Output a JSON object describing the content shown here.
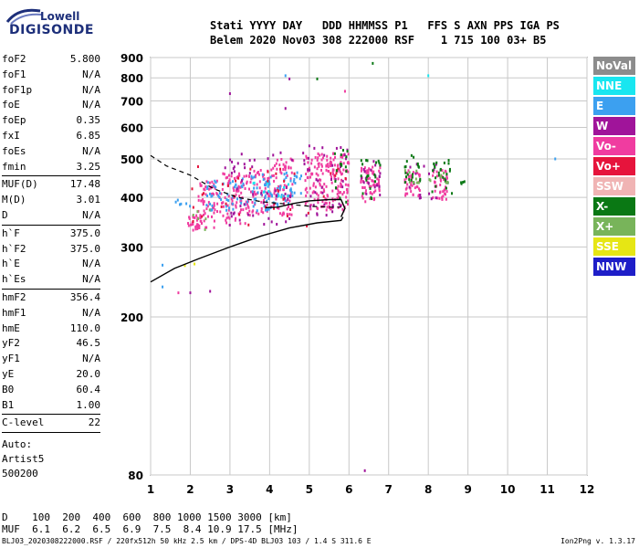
{
  "logo": {
    "line1": "Lowell",
    "line2": "DIGISONDE"
  },
  "header": {
    "labels": "Stati YYYY DAY   DDD HHMMSS P1   FFS S AXN PPS IGA PS",
    "values": "Belem 2020 Nov03 308 222000 RSF    1 715 100 03+ B5"
  },
  "params": [
    {
      "label": "foF2",
      "value": "5.800"
    },
    {
      "label": "foF1",
      "value": "N/A"
    },
    {
      "label": "foF1p",
      "value": "N/A"
    },
    {
      "label": "foE",
      "value": "N/A"
    },
    {
      "label": "foEp",
      "value": "0.35"
    },
    {
      "label": "fxI",
      "value": "6.85"
    },
    {
      "label": "foEs",
      "value": "N/A"
    },
    {
      "label": "fmin",
      "value": "3.25"
    },
    {
      "sep": true
    },
    {
      "label": "MUF(D)",
      "value": "17.48"
    },
    {
      "label": "M(D)",
      "value": "3.01"
    },
    {
      "label": "D",
      "value": "N/A"
    },
    {
      "sep": true
    },
    {
      "label": "h`F",
      "value": "375.0"
    },
    {
      "label": "h`F2",
      "value": "375.0"
    },
    {
      "label": "h`E",
      "value": "N/A"
    },
    {
      "label": "h`Es",
      "value": "N/A"
    },
    {
      "sep": true
    },
    {
      "label": "hmF2",
      "value": "356.4"
    },
    {
      "label": "hmF1",
      "value": "N/A"
    },
    {
      "label": "hmE",
      "value": "110.0"
    },
    {
      "label": "yF2",
      "value": "46.5"
    },
    {
      "label": "yF1",
      "value": "N/A"
    },
    {
      "label": "yE",
      "value": "20.0"
    },
    {
      "label": "B0",
      "value": "60.4"
    },
    {
      "label": "B1",
      "value": "1.00"
    },
    {
      "sep": true
    },
    {
      "label": "C-level",
      "value": "22"
    },
    {
      "sep": true
    }
  ],
  "auto": {
    "line1": "Auto:",
    "line2": "Artist5",
    "line3": "500200"
  },
  "legend": [
    {
      "label": "NoVal",
      "color": "#8c8c8c"
    },
    {
      "label": "NNE",
      "color": "#19e6f0"
    },
    {
      "label": "E",
      "color": "#3ca0f0"
    },
    {
      "label": "W",
      "color": "#a0149a"
    },
    {
      "label": "Vo-",
      "color": "#f03ca0"
    },
    {
      "label": "Vo+",
      "color": "#e6143c"
    },
    {
      "label": "SSW",
      "color": "#f0b4b4"
    },
    {
      "label": "X-",
      "color": "#0a7814"
    },
    {
      "label": "X+",
      "color": "#78b45a"
    },
    {
      "label": "SSE",
      "color": "#e6e614"
    },
    {
      "label": "NNW",
      "color": "#1e1ec8"
    }
  ],
  "muf_table": {
    "d_row": "D    100  200  400  600  800 1000 1500 3000 [km]",
    "muf_row": "MUF  6.1  6.2  6.5  6.9  7.5  8.4 10.9 17.5 [MHz]"
  },
  "footer": "BLJ03_2020308222000.RSF / 220fx512h 50 kHz 2.5 km / DPS-4D BLJ03 103 / 1.4 S 311.6 E",
  "version": "Ion2Png v. 1.3.17",
  "chart_data": {
    "type": "scatter",
    "title": "",
    "xlabel": "",
    "ylabel": "",
    "xlim": [
      1,
      12
    ],
    "ylim": [
      80,
      900
    ],
    "yscale": "log",
    "xticks": [
      1,
      2,
      3,
      4,
      5,
      6,
      7,
      8,
      9,
      10,
      11,
      12
    ],
    "yticks": [
      80,
      200,
      300,
      400,
      500,
      600,
      700,
      800,
      900
    ],
    "grid": true,
    "series": [
      {
        "name": "Vo-",
        "color": "#f03ca0",
        "clusters": [
          {
            "f": [
              1.9,
              2.3
            ],
            "h": [
              330,
              360
            ],
            "n": 30
          },
          {
            "f": [
              2.2,
              2.8
            ],
            "h": [
              335,
              440
            ],
            "n": 60
          },
          {
            "f": [
              2.8,
              3.4
            ],
            "h": [
              340,
              460
            ],
            "n": 70
          },
          {
            "f": [
              3.4,
              4.0
            ],
            "h": [
              360,
              470
            ],
            "n": 70
          },
          {
            "f": [
              4.0,
              4.6
            ],
            "h": [
              360,
              500
            ],
            "n": 70
          },
          {
            "f": [
              4.9,
              5.5
            ],
            "h": [
              370,
              520
            ],
            "n": 90
          },
          {
            "f": [
              5.5,
              6.0
            ],
            "h": [
              370,
              520
            ],
            "n": 90
          },
          {
            "f": [
              6.3,
              6.8
            ],
            "h": [
              390,
              480
            ],
            "n": 60
          },
          {
            "f": [
              7.4,
              7.8
            ],
            "h": [
              400,
              470
            ],
            "n": 40
          },
          {
            "f": [
              8.1,
              8.5
            ],
            "h": [
              395,
              470
            ],
            "n": 40
          }
        ]
      },
      {
        "name": "E",
        "color": "#3ca0f0",
        "clusters": [
          {
            "f": [
              2.4,
              3.2
            ],
            "h": [
              370,
              440
            ],
            "n": 40
          },
          {
            "f": [
              3.2,
              4.2
            ],
            "h": [
              370,
              460
            ],
            "n": 50
          },
          {
            "f": [
              4.2,
              4.8
            ],
            "h": [
              380,
              470
            ],
            "n": 30
          },
          {
            "f": [
              1.5,
              2.0
            ],
            "h": [
              380,
              395
            ],
            "n": 6
          }
        ]
      },
      {
        "name": "W",
        "color": "#a0149a",
        "clusters": [
          {
            "f": [
              2.8,
              4.6
            ],
            "h": [
              340,
              520
            ],
            "n": 50
          },
          {
            "f": [
              4.8,
              6.0
            ],
            "h": [
              360,
              540
            ],
            "n": 40
          },
          {
            "f": [
              6.3,
              6.8
            ],
            "h": [
              395,
              500
            ],
            "n": 20
          },
          {
            "f": [
              7.4,
              8.5
            ],
            "h": [
              395,
              490
            ],
            "n": 15
          }
        ]
      },
      {
        "name": "Vo+",
        "color": "#e6143c",
        "clusters": [
          {
            "f": [
              2.0,
              6.0
            ],
            "h": [
              335,
              480
            ],
            "n": 40
          }
        ]
      },
      {
        "name": "X-",
        "color": "#0a7814",
        "clusters": [
          {
            "f": [
              5.6,
              6.0
            ],
            "h": [
              380,
              560
            ],
            "n": 15
          },
          {
            "f": [
              6.3,
              6.8
            ],
            "h": [
              395,
              510
            ],
            "n": 20
          },
          {
            "f": [
              7.4,
              7.8
            ],
            "h": [
              420,
              510
            ],
            "n": 20
          },
          {
            "f": [
              8.1,
              8.6
            ],
            "h": [
              400,
              500
            ],
            "n": 25
          },
          {
            "f": [
              8.8,
              9.0
            ],
            "h": [
              400,
              460
            ],
            "n": 4
          }
        ]
      },
      {
        "name": "X+",
        "color": "#78b45a",
        "clusters": [
          {
            "f": [
              7.4,
              8.6
            ],
            "h": [
              430,
              490
            ],
            "n": 15
          },
          {
            "f": [
              2.0,
              2.5
            ],
            "h": [
              330,
              380
            ],
            "n": 6
          }
        ]
      },
      {
        "name": "NNE",
        "color": "#19e6f0",
        "clusters": [
          {
            "f": [
              3.5,
              4.5
            ],
            "h": [
              400,
              440
            ],
            "n": 10
          }
        ]
      },
      {
        "name": "SSE",
        "color": "#e6e614",
        "clusters": [
          {
            "f": [
              1.8,
              2.2
            ],
            "h": [
              255,
              275
            ],
            "n": 2
          }
        ]
      }
    ],
    "isolated_points": [
      {
        "f": 1.3,
        "h": 270,
        "series": "E"
      },
      {
        "f": 1.3,
        "h": 238,
        "series": "E"
      },
      {
        "f": 1.7,
        "h": 230,
        "series": "Vo-"
      },
      {
        "f": 2.0,
        "h": 230,
        "series": "W"
      },
      {
        "f": 2.5,
        "h": 232,
        "series": "W"
      },
      {
        "f": 3.0,
        "h": 730,
        "series": "W"
      },
      {
        "f": 4.4,
        "h": 670,
        "series": "W"
      },
      {
        "f": 4.4,
        "h": 810,
        "series": "E"
      },
      {
        "f": 4.5,
        "h": 795,
        "series": "W"
      },
      {
        "f": 5.2,
        "h": 795,
        "series": "X-"
      },
      {
        "f": 5.9,
        "h": 740,
        "series": "Vo-"
      },
      {
        "f": 6.6,
        "h": 870,
        "series": "X-"
      },
      {
        "f": 8.0,
        "h": 810,
        "series": "NNE"
      },
      {
        "f": 6.4,
        "h": 82,
        "series": "W"
      },
      {
        "f": 11.2,
        "h": 500,
        "series": "E"
      }
    ],
    "profile_dashed": [
      [
        1,
        510
      ],
      [
        1.4,
        480
      ],
      [
        2,
        455
      ],
      [
        2.6,
        420
      ],
      [
        3.2,
        400
      ],
      [
        3.8,
        390
      ],
      [
        4.4,
        385
      ],
      [
        5,
        380
      ],
      [
        5.5,
        378
      ],
      [
        5.8,
        378
      ]
    ],
    "profile_solid": [
      [
        3.9,
        377
      ],
      [
        4.2,
        378
      ],
      [
        4.6,
        386
      ],
      [
        5.0,
        392
      ],
      [
        5.5,
        395
      ],
      [
        5.8,
        395
      ],
      [
        5.9,
        375
      ],
      [
        5.8,
        357
      ]
    ],
    "virtual_trace": [
      [
        1,
        245
      ],
      [
        1.6,
        265
      ],
      [
        2.2,
        280
      ],
      [
        3.0,
        300
      ],
      [
        3.8,
        320
      ],
      [
        4.5,
        335
      ],
      [
        5.2,
        345
      ],
      [
        5.8,
        350
      ],
      [
        5.85,
        357
      ]
    ]
  }
}
